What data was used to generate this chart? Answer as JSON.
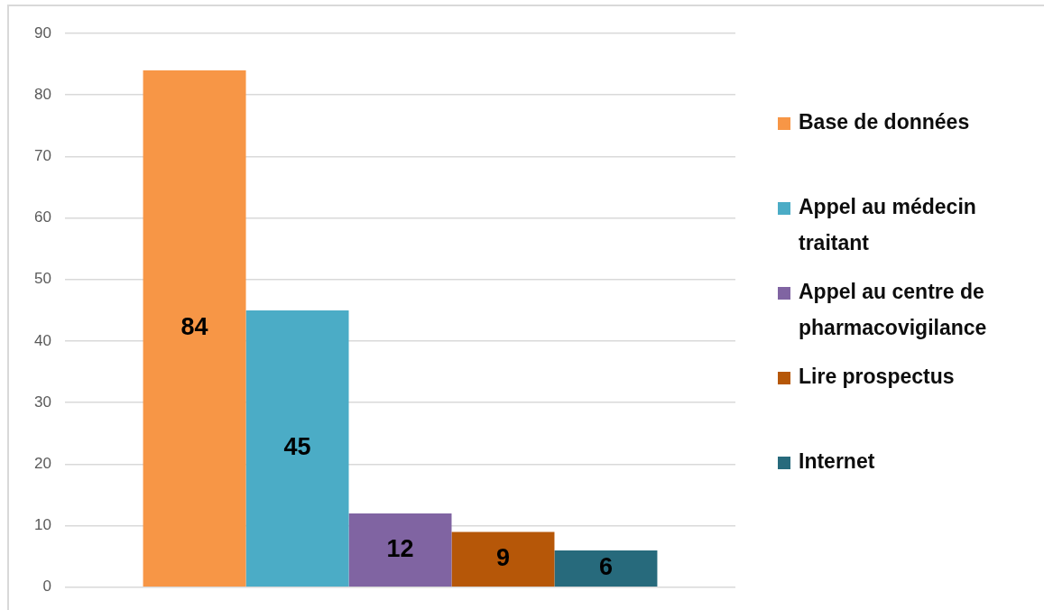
{
  "chart_data": {
    "type": "bar",
    "categories": [
      null
    ],
    "series": [
      {
        "name": "Base de données",
        "color": "#f79646",
        "values": [
          84
        ]
      },
      {
        "name": "Appel au médecin traitant",
        "color": "#4bacc6",
        "values": [
          45
        ]
      },
      {
        "name": "Appel au centre de pharmacovigilance",
        "color": "#8064a2",
        "values": [
          12
        ]
      },
      {
        "name": "Lire prospectus",
        "color": "#b65708",
        "values": [
          9
        ]
      },
      {
        "name": "Internet",
        "color": "#276a7c",
        "values": [
          6
        ]
      }
    ],
    "ylim": [
      0,
      90
    ],
    "yticks": [
      0,
      10,
      20,
      30,
      40,
      50,
      60,
      70,
      80,
      90
    ],
    "grid": "y",
    "legend": "right",
    "data_labels": true
  }
}
